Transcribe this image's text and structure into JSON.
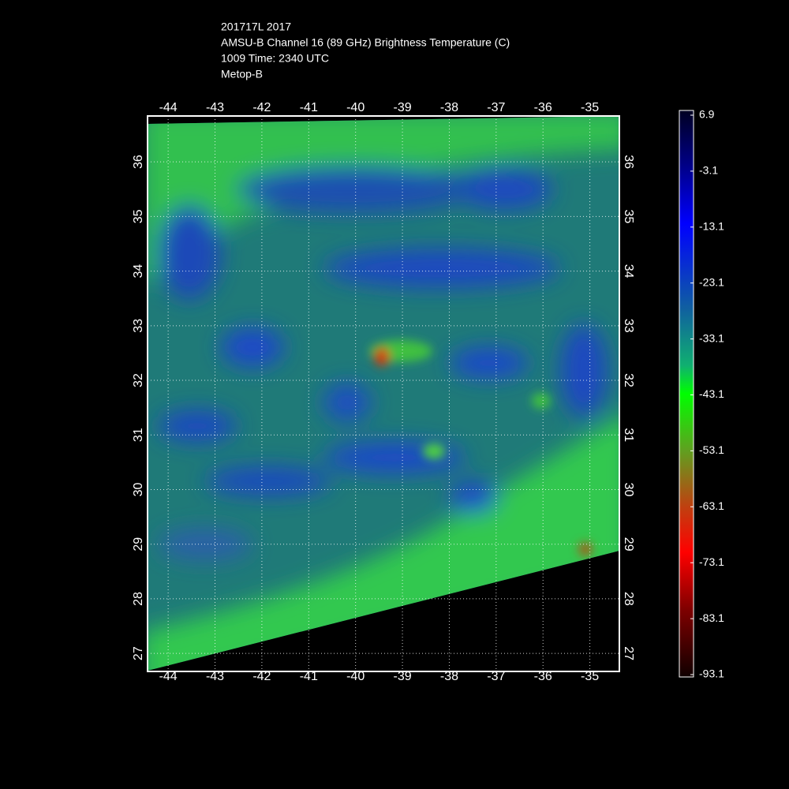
{
  "header": {
    "lines": [
      "201717L 2017",
      "AMSU-B Channel 16 (89 GHz) Brightness Temperature (C)",
      "1009 Time: 2340 UTC",
      "Metop-B"
    ]
  },
  "map": {
    "xlim": [
      -44.44,
      -34.37
    ],
    "ylim": [
      26.67,
      36.84
    ],
    "xticks": [
      -44,
      -43,
      -42,
      -41,
      -40,
      -39,
      -38,
      -37,
      -36,
      -35
    ],
    "yticks": [
      27,
      28,
      29,
      30,
      31,
      32,
      33,
      34,
      35,
      36
    ],
    "grid": true
  },
  "colorbar": {
    "clim": [
      -93.1,
      6.9
    ],
    "ticks": [
      6.9,
      -3.1,
      -13.1,
      -23.1,
      -33.1,
      -43.1,
      -53.1,
      -63.1,
      -73.1,
      -83.1,
      -93.1
    ]
  }
}
